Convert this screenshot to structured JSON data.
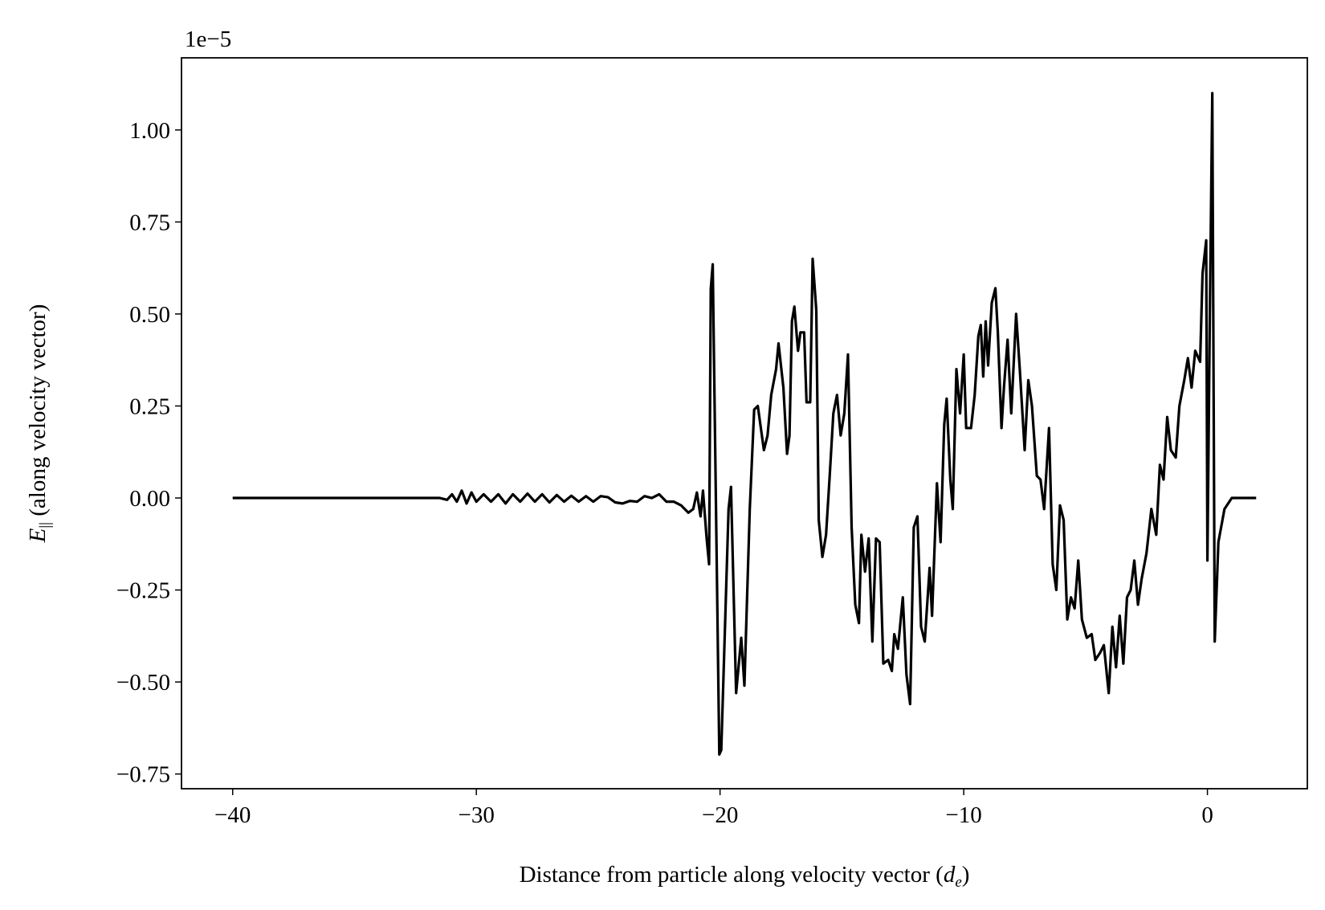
{
  "chart_data": {
    "type": "line",
    "x_label": {
      "prefix": "Distance from particle along velocity vector (",
      "symbol": "d",
      "subscript": "e",
      "suffix": ")"
    },
    "y_label": {
      "symbol": "E",
      "subscript": "||",
      "text": " (along velocity vector)"
    },
    "y_offset_label": "1e−5",
    "color": "#000000",
    "xlim": [
      -42.1,
      4.1
    ],
    "ylim": [
      -0.79,
      1.196
    ],
    "xticks": [
      {
        "value": -40,
        "label": "−40"
      },
      {
        "value": -30,
        "label": "−30"
      },
      {
        "value": -20,
        "label": "−20"
      },
      {
        "value": -10,
        "label": "−10"
      },
      0
    ],
    "yticks": [
      {
        "value": -0.75,
        "label": "−0.75"
      },
      {
        "value": -0.5,
        "label": "−0.50"
      },
      {
        "value": -0.25,
        "label": "−0.25"
      },
      {
        "value": 0,
        "label": "0.00"
      },
      {
        "value": 0.25,
        "label": "0.25"
      },
      {
        "value": 0.5,
        "label": "0.50"
      },
      {
        "value": 0.75,
        "label": "0.75"
      },
      {
        "value": 1,
        "label": "1.00"
      }
    ],
    "x": [
      -40,
      -31.5,
      -31.2,
      -31.0,
      -30.8,
      -30.6,
      -30.4,
      -30.2,
      -30.0,
      -29.7,
      -29.4,
      -29.1,
      -28.8,
      -28.5,
      -28.2,
      -27.9,
      -27.6,
      -27.3,
      -27.0,
      -26.7,
      -26.4,
      -26.1,
      -25.8,
      -25.5,
      -25.2,
      -24.9,
      -24.6,
      -24.3,
      -24.0,
      -23.7,
      -23.4,
      -23.1,
      -22.8,
      -22.5,
      -22.2,
      -21.9,
      -21.6,
      -21.3,
      -21.1,
      -20.95,
      -20.8,
      -20.7,
      -20.55,
      -20.45,
      -20.38,
      -20.3,
      -20.03,
      -19.95,
      -19.65,
      -19.55,
      -19.34,
      -19.13,
      -19.0,
      -18.78,
      -18.6,
      -18.45,
      -18.2,
      -18.05,
      -17.9,
      -17.7,
      -17.6,
      -17.4,
      -17.25,
      -17.15,
      -17.05,
      -16.95,
      -16.8,
      -16.7,
      -16.55,
      -16.45,
      -16.3,
      -16.2,
      -16.05,
      -15.95,
      -15.8,
      -15.65,
      -15.5,
      -15.35,
      -15.2,
      -15.05,
      -14.9,
      -14.75,
      -14.6,
      -14.45,
      -14.3,
      -14.2,
      -14.05,
      -13.9,
      -13.75,
      -13.6,
      -13.45,
      -13.3,
      -13.1,
      -12.95,
      -12.85,
      -12.7,
      -12.5,
      -12.35,
      -12.2,
      -12.05,
      -11.9,
      -11.75,
      -11.6,
      -11.4,
      -11.3,
      -11.1,
      -10.95,
      -10.8,
      -10.7,
      -10.55,
      -10.45,
      -10.3,
      -10.15,
      -10.0,
      -9.9,
      -9.7,
      -9.55,
      -9.4,
      -9.3,
      -9.2,
      -9.1,
      -9.0,
      -8.85,
      -8.7,
      -8.6,
      -8.45,
      -8.35,
      -8.2,
      -8.05,
      -7.85,
      -7.7,
      -7.5,
      -7.35,
      -7.2,
      -7.0,
      -6.85,
      -6.7,
      -6.5,
      -6.35,
      -6.2,
      -6.05,
      -5.9,
      -5.75,
      -5.6,
      -5.45,
      -5.3,
      -5.15,
      -4.95,
      -4.75,
      -4.6,
      -4.4,
      -4.25,
      -4.05,
      -3.9,
      -3.75,
      -3.6,
      -3.45,
      -3.3,
      -3.15,
      -3.0,
      -2.85,
      -2.7,
      -2.5,
      -2.3,
      -2.1,
      -1.95,
      -1.8,
      -1.65,
      -1.5,
      -1.3,
      -1.15,
      -0.95,
      -0.8,
      -0.65,
      -0.5,
      -0.3,
      -0.2,
      -0.05,
      0.0,
      0.1,
      0.2,
      0.3,
      0.45,
      0.7,
      1.0,
      2.0
    ],
    "values": [
      0,
      0,
      -0.005,
      0.01,
      -0.01,
      0.02,
      -0.015,
      0.015,
      -0.01,
      0.01,
      -0.01,
      0.01,
      -0.015,
      0.01,
      -0.01,
      0.012,
      -0.01,
      0.01,
      -0.012,
      0.008,
      -0.01,
      0.006,
      -0.01,
      0.005,
      -0.01,
      0.005,
      0.002,
      -0.012,
      -0.015,
      -0.008,
      -0.01,
      0.005,
      0.0,
      0.01,
      -0.01,
      -0.01,
      -0.02,
      -0.04,
      -0.03,
      0.015,
      -0.05,
      0.02,
      -0.11,
      -0.18,
      0.568,
      0.635,
      -0.697,
      -0.685,
      -0.03,
      0.03,
      -0.53,
      -0.38,
      -0.51,
      -0.03,
      0.24,
      0.25,
      0.13,
      0.17,
      0.28,
      0.35,
      0.42,
      0.3,
      0.12,
      0.17,
      0.48,
      0.52,
      0.4,
      0.45,
      0.45,
      0.26,
      0.26,
      0.65,
      0.51,
      -0.06,
      -0.16,
      -0.1,
      0.06,
      0.23,
      0.28,
      0.17,
      0.23,
      0.39,
      -0.08,
      -0.29,
      -0.34,
      -0.1,
      -0.2,
      -0.11,
      -0.39,
      -0.11,
      -0.12,
      -0.45,
      -0.44,
      -0.47,
      -0.37,
      -0.41,
      -0.27,
      -0.48,
      -0.56,
      -0.08,
      -0.05,
      -0.35,
      -0.39,
      -0.19,
      -0.32,
      0.04,
      -0.12,
      0.2,
      0.27,
      0.05,
      -0.03,
      0.35,
      0.23,
      0.39,
      0.19,
      0.19,
      0.28,
      0.44,
      0.47,
      0.33,
      0.48,
      0.36,
      0.53,
      0.57,
      0.45,
      0.19,
      0.3,
      0.43,
      0.23,
      0.5,
      0.35,
      0.13,
      0.32,
      0.25,
      0.06,
      0.05,
      -0.03,
      0.19,
      -0.18,
      -0.25,
      -0.02,
      -0.06,
      -0.33,
      -0.27,
      -0.3,
      -0.17,
      -0.33,
      -0.38,
      -0.37,
      -0.44,
      -0.42,
      -0.4,
      -0.53,
      -0.35,
      -0.46,
      -0.32,
      -0.45,
      -0.27,
      -0.25,
      -0.17,
      -0.29,
      -0.22,
      -0.15,
      -0.03,
      -0.1,
      0.09,
      0.05,
      0.22,
      0.13,
      0.11,
      0.25,
      0.32,
      0.38,
      0.3,
      0.4,
      0.37,
      0.61,
      0.7,
      -0.17,
      0.5,
      1.1,
      -0.39,
      -0.12,
      -0.03,
      0.0,
      0.0
    ]
  }
}
